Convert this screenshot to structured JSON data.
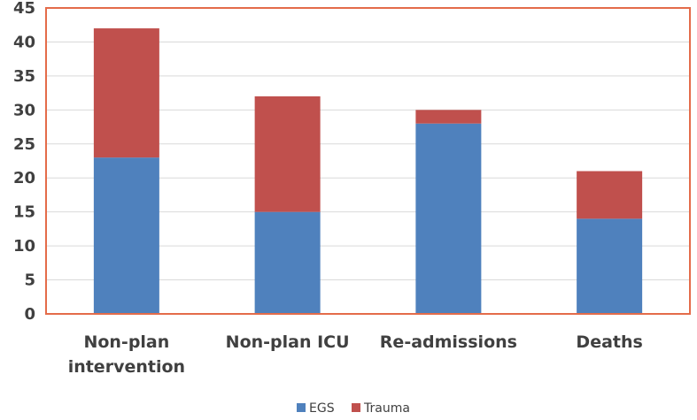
{
  "chart_data": {
    "type": "bar",
    "stacked": true,
    "categories": [
      [
        "Non-plan",
        "intervention"
      ],
      [
        "Non-plan ICU"
      ],
      [
        "Re-admissions"
      ],
      [
        "Deaths"
      ]
    ],
    "series": [
      {
        "name": "EGS",
        "values": [
          23,
          15,
          28,
          14
        ],
        "color": "#4F81BD"
      },
      {
        "name": "Trauma",
        "values": [
          19,
          17,
          2,
          7
        ],
        "color": "#C0504D"
      }
    ],
    "ylim": [
      0,
      45
    ],
    "yticks": [
      "0",
      "5",
      "10",
      "15",
      "20",
      "25",
      "30",
      "35",
      "40",
      "45"
    ],
    "grid": true,
    "legend_position": "bottom",
    "plot_border_color": "#E46C4A"
  }
}
